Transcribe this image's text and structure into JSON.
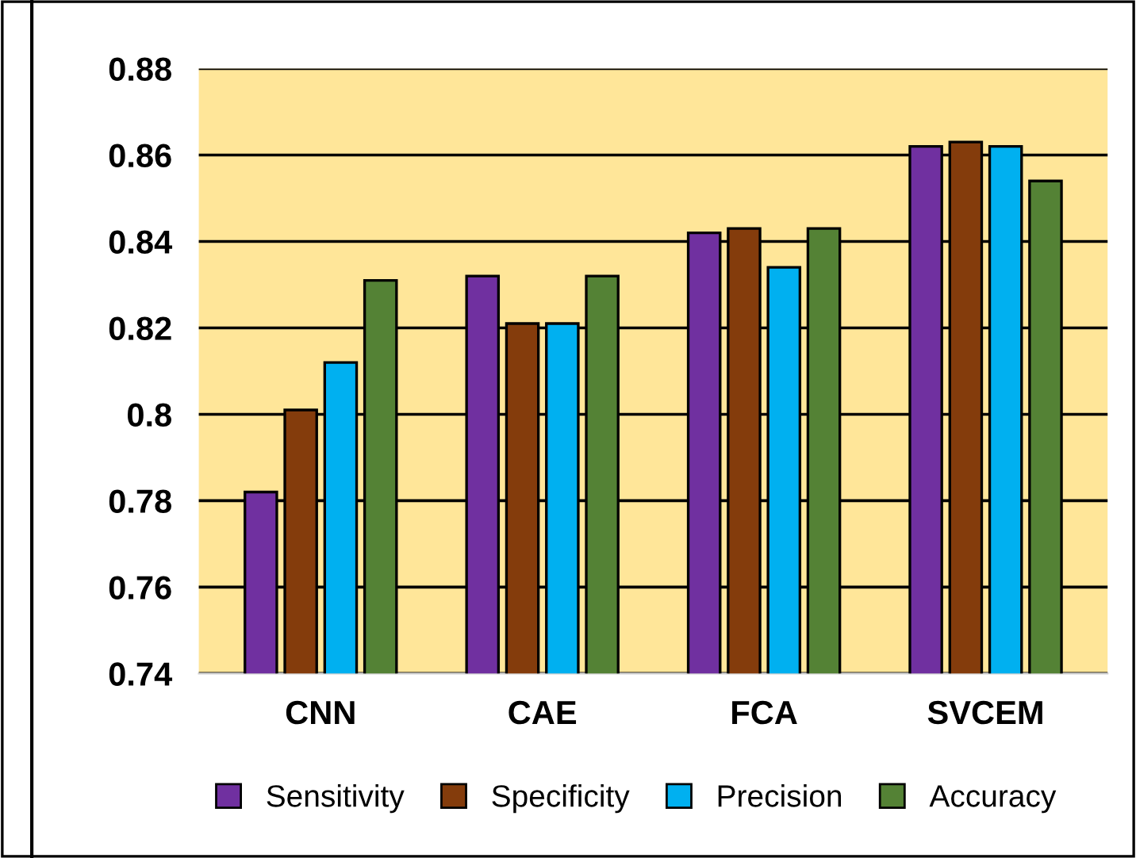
{
  "chart_data": {
    "type": "bar",
    "categories": [
      "CNN",
      "CAE",
      "FCA",
      "SVCEM"
    ],
    "series": [
      {
        "name": "Sensitivity",
        "color": "#7030a0",
        "values": [
          0.782,
          0.832,
          0.842,
          0.862
        ]
      },
      {
        "name": "Specificity",
        "color": "#843c0c",
        "values": [
          0.801,
          0.821,
          0.843,
          0.863
        ]
      },
      {
        "name": "Precision",
        "color": "#00b0f0",
        "values": [
          0.812,
          0.821,
          0.834,
          0.862
        ]
      },
      {
        "name": "Accuracy",
        "color": "#548235",
        "values": [
          0.831,
          0.832,
          0.843,
          0.854
        ]
      }
    ],
    "ylim": [
      0.74,
      0.88
    ],
    "yticks": [
      0.74,
      0.76,
      0.78,
      {
        "value": 0.8,
        "label": "0.8"
      },
      0.82,
      0.84,
      0.86,
      0.88
    ],
    "grid": "y",
    "legend": "bottom"
  }
}
